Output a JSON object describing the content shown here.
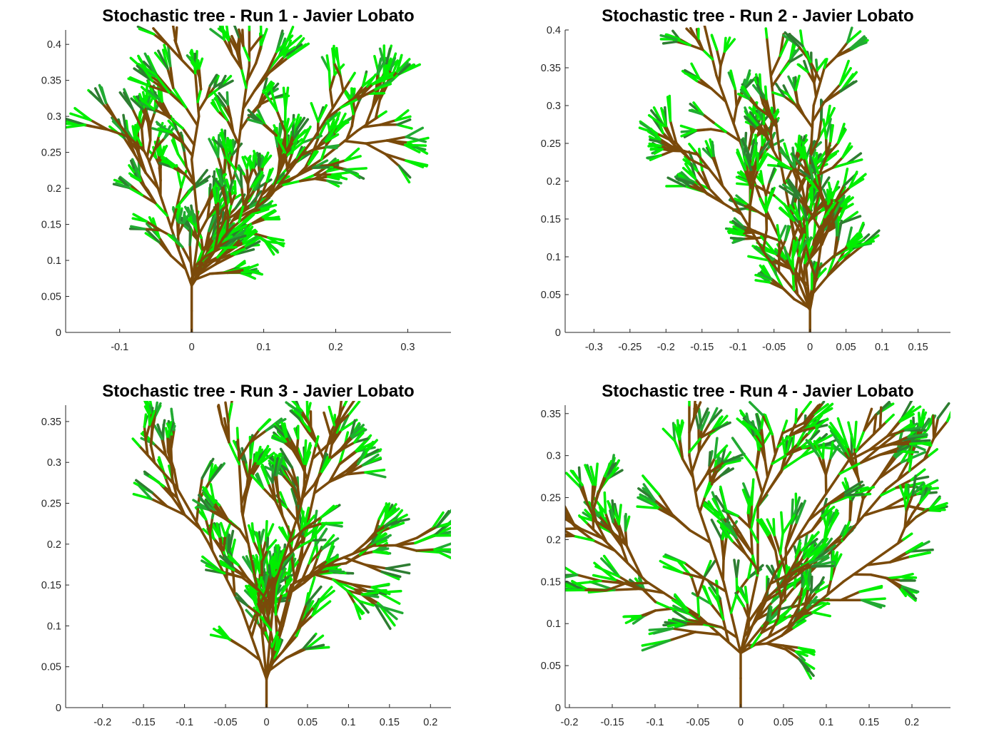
{
  "chart_data": [
    {
      "type": "line",
      "title": "Stochastic tree - Run 1 - Javier Lobato",
      "xlim": [
        -0.175,
        0.36
      ],
      "ylim": [
        0,
        0.42
      ],
      "xticks": [
        "-0.1",
        "0",
        "0.1",
        "0.2",
        "0.3"
      ],
      "yticks": [
        "0",
        "0.05",
        "0.1",
        "0.15",
        "0.2",
        "0.25",
        "0.3",
        "0.35",
        "0.4"
      ],
      "grid": false,
      "trunk": [
        [
          0,
          0
        ],
        [
          0,
          0.03
        ],
        [
          0,
          0.065
        ]
      ],
      "main_branches": [
        [
          [
            0,
            0.065
          ],
          [
            0.02,
            0.1
          ],
          [
            0.06,
            0.16
          ],
          [
            0.12,
            0.2
          ],
          [
            0.18,
            0.24
          ],
          [
            0.23,
            0.28
          ],
          [
            0.26,
            0.3
          ]
        ],
        [
          [
            0,
            0.065
          ],
          [
            0.03,
            0.13
          ],
          [
            0.06,
            0.22
          ],
          [
            0.07,
            0.3
          ],
          [
            0.08,
            0.37
          ],
          [
            0.08,
            0.42
          ]
        ],
        [
          [
            0,
            0.065
          ],
          [
            -0.02,
            0.12
          ],
          [
            -0.04,
            0.18
          ],
          [
            -0.06,
            0.24
          ],
          [
            -0.07,
            0.26
          ]
        ],
        [
          [
            0,
            0.065
          ],
          [
            0.01,
            0.14
          ],
          [
            0.0,
            0.24
          ],
          [
            0.01,
            0.3
          ],
          [
            0.005,
            0.36
          ]
        ],
        [
          [
            0,
            0.065
          ],
          [
            0.05,
            0.14
          ],
          [
            0.11,
            0.19
          ],
          [
            0.17,
            0.27
          ],
          [
            0.22,
            0.35
          ]
        ]
      ]
    },
    {
      "type": "line",
      "title": "Stochastic tree - Run 2 - Javier Lobato",
      "xlim": [
        -0.34,
        0.195
      ],
      "ylim": [
        0,
        0.4
      ],
      "xticks": [
        "-0.3",
        "-0.25",
        "-0.2",
        "-0.15",
        "-0.1",
        "-0.05",
        "0",
        "0.05",
        "0.1",
        "0.15"
      ],
      "yticks": [
        "0",
        "0.05",
        "0.1",
        "0.15",
        "0.2",
        "0.25",
        "0.3",
        "0.35",
        "0.4"
      ],
      "grid": false,
      "trunk": [
        [
          0,
          0
        ],
        [
          0,
          0.03
        ]
      ],
      "main_branches": [
        [
          [
            0,
            0.03
          ],
          [
            -0.03,
            0.1
          ],
          [
            -0.07,
            0.18
          ],
          [
            -0.1,
            0.26
          ],
          [
            -0.13,
            0.34
          ],
          [
            -0.15,
            0.42
          ]
        ],
        [
          [
            0,
            0.03
          ],
          [
            -0.02,
            0.12
          ],
          [
            -0.04,
            0.22
          ],
          [
            -0.05,
            0.3
          ],
          [
            -0.06,
            0.39
          ]
        ],
        [
          [
            0,
            0.03
          ],
          [
            -0.01,
            0.13
          ],
          [
            0.0,
            0.22
          ],
          [
            0.005,
            0.3
          ],
          [
            0.02,
            0.35
          ]
        ],
        [
          [
            0,
            0.03
          ],
          [
            0.01,
            0.08
          ],
          [
            0.02,
            0.15
          ],
          [
            0.025,
            0.17
          ]
        ],
        [
          [
            0,
            0.03
          ],
          [
            -0.06,
            0.1
          ],
          [
            -0.11,
            0.18
          ],
          [
            -0.16,
            0.24
          ]
        ]
      ]
    },
    {
      "type": "line",
      "title": "Stochastic tree - Run 3 - Javier Lobato",
      "xlim": [
        -0.245,
        0.225
      ],
      "ylim": [
        0,
        0.37
      ],
      "xticks": [
        "-0.2",
        "-0.15",
        "-0.1",
        "-0.05",
        "0",
        "0.05",
        "0.1",
        "0.15",
        "0.2"
      ],
      "yticks": [
        "0",
        "0.05",
        "0.1",
        "0.15",
        "0.2",
        "0.25",
        "0.3",
        "0.35"
      ],
      "grid": false,
      "trunk": [
        [
          0,
          0
        ],
        [
          0,
          0.035
        ]
      ],
      "main_branches": [
        [
          [
            0,
            0.035
          ],
          [
            0.02,
            0.1
          ],
          [
            0.04,
            0.18
          ],
          [
            0.06,
            0.27
          ],
          [
            0.08,
            0.34
          ],
          [
            0.095,
            0.37
          ]
        ],
        [
          [
            0,
            0.035
          ],
          [
            -0.03,
            0.12
          ],
          [
            -0.07,
            0.2
          ],
          [
            -0.11,
            0.27
          ],
          [
            -0.155,
            0.32
          ]
        ],
        [
          [
            0,
            0.035
          ],
          [
            0.03,
            0.15
          ],
          [
            0.085,
            0.18
          ],
          [
            0.135,
            0.2
          ]
        ],
        [
          [
            0,
            0.035
          ],
          [
            -0.01,
            0.14
          ],
          [
            -0.03,
            0.24
          ],
          [
            -0.035,
            0.33
          ]
        ],
        [
          [
            0,
            0.035
          ],
          [
            0.01,
            0.15
          ],
          [
            0.04,
            0.24
          ],
          [
            0.06,
            0.32
          ]
        ]
      ]
    },
    {
      "type": "line",
      "title": "Stochastic tree - Run 4 - Javier Lobato",
      "xlim": [
        -0.205,
        0.245
      ],
      "ylim": [
        0,
        0.36
      ],
      "xticks": [
        "-0.2",
        "-0.15",
        "-0.1",
        "-0.05",
        "0",
        "0.05",
        "0.1",
        "0.15",
        "0.2"
      ],
      "yticks": [
        "0",
        "0.05",
        "0.1",
        "0.15",
        "0.2",
        "0.25",
        "0.3",
        "0.35"
      ],
      "grid": false,
      "trunk": [
        [
          0,
          0
        ],
        [
          0,
          0.035
        ],
        [
          0,
          0.065
        ]
      ],
      "main_branches": [
        [
          [
            0,
            0.065
          ],
          [
            -0.05,
            0.11
          ],
          [
            -0.11,
            0.15
          ],
          [
            -0.15,
            0.19
          ],
          [
            -0.18,
            0.22
          ]
        ],
        [
          [
            0,
            0.065
          ],
          [
            -0.02,
            0.15
          ],
          [
            -0.05,
            0.24
          ],
          [
            -0.06,
            0.3
          ],
          [
            -0.06,
            0.36
          ]
        ],
        [
          [
            0,
            0.065
          ],
          [
            0.02,
            0.16
          ],
          [
            0.02,
            0.24
          ],
          [
            0.04,
            0.3
          ],
          [
            0.05,
            0.33
          ]
        ],
        [
          [
            0,
            0.065
          ],
          [
            0.06,
            0.14
          ],
          [
            0.12,
            0.2
          ],
          [
            0.17,
            0.26
          ],
          [
            0.22,
            0.3
          ]
        ],
        [
          [
            0,
            0.065
          ],
          [
            0.06,
            0.1
          ],
          [
            0.12,
            0.15
          ],
          [
            0.19,
            0.2
          ]
        ],
        [
          [
            0,
            0.065
          ],
          [
            0.04,
            0.16
          ],
          [
            0.09,
            0.24
          ],
          [
            0.13,
            0.3
          ],
          [
            0.17,
            0.34
          ]
        ]
      ]
    }
  ]
}
